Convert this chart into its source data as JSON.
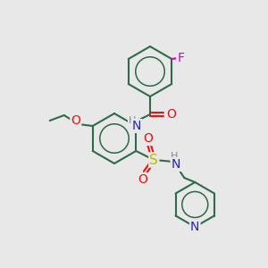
{
  "bg_color": "#e8e8e8",
  "bond_color": "#2d6b4a",
  "bond_width": 1.5,
  "atom_colors": {
    "N": "#2525bb",
    "O": "#ee1111",
    "S": "#bbbb00",
    "F": "#cc00cc",
    "C": "#2d6b4a",
    "H_color": "#888888"
  },
  "font_size": 9
}
